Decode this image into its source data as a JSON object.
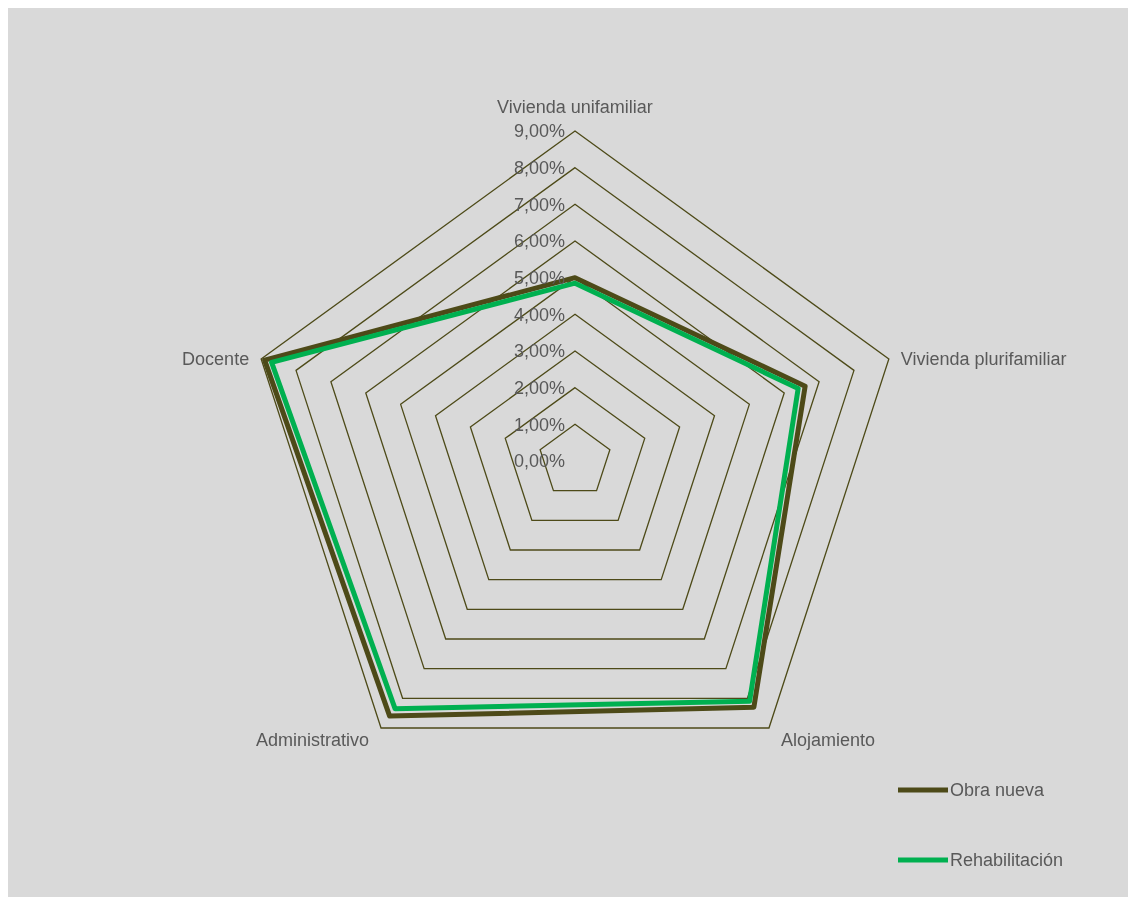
{
  "chart_data": {
    "type": "radar",
    "categories": [
      "Vivienda unifamiliar",
      "Vivienda plurifamiliar",
      "Alojamiento",
      "Administrativo",
      "Docente"
    ],
    "series": [
      {
        "name": "Obra nueva",
        "color": "#4d4a18",
        "values": [
          5.0,
          6.6,
          8.3,
          8.6,
          8.9
        ]
      },
      {
        "name": "Rehabilitación",
        "color": "#00b050",
        "values": [
          4.85,
          6.4,
          8.1,
          8.35,
          8.7
        ]
      }
    ],
    "ylim": [
      0,
      9
    ],
    "yticks": [
      {
        "value": 0,
        "label": "0,00%"
      },
      {
        "value": 1,
        "label": "1,00%"
      },
      {
        "value": 2,
        "label": "2,00%"
      },
      {
        "value": 3,
        "label": "3,00%"
      },
      {
        "value": 4,
        "label": "4,00%"
      },
      {
        "value": 5,
        "label": "5,00%"
      },
      {
        "value": 6,
        "label": "6,00%"
      },
      {
        "value": 7,
        "label": "7,00%"
      },
      {
        "value": 8,
        "label": "8,00%"
      },
      {
        "value": 9,
        "label": "9,00%"
      }
    ],
    "grid": true,
    "legend": "bottom right"
  }
}
